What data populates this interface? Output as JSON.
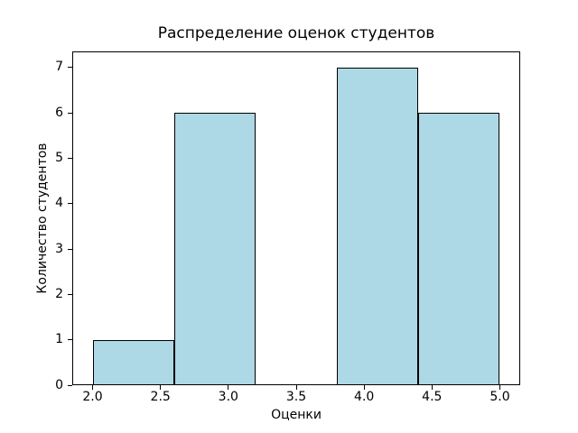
{
  "figure": {
    "background": "#ffffff"
  },
  "chart_data": {
    "type": "bar",
    "subtype": "histogram",
    "title": "Распределение оценок студентов",
    "xlabel": "Оценки",
    "ylabel": "Количество студентов",
    "bin_edges": [
      2.0,
      2.6,
      3.2,
      3.8,
      4.4,
      5.0
    ],
    "counts": [
      1,
      6,
      0,
      7,
      6
    ],
    "x_ticks": [
      2.0,
      2.5,
      3.0,
      3.5,
      4.0,
      4.5,
      5.0
    ],
    "x_tick_labels": [
      "2.0",
      "2.5",
      "3.0",
      "3.5",
      "4.0",
      "4.5",
      "5.0"
    ],
    "y_ticks": [
      0,
      1,
      2,
      3,
      4,
      5,
      6,
      7
    ],
    "y_tick_labels": [
      "0",
      "1",
      "2",
      "3",
      "4",
      "5",
      "6",
      "7"
    ],
    "xlim": [
      1.85,
      5.15
    ],
    "ylim": [
      0,
      7.35
    ],
    "grid": false,
    "legend_position": "none",
    "bar_fill_color": "#ADD8E6",
    "bar_edge_color": "#000000",
    "axis_color": "#000000",
    "text_color": "#000000"
  }
}
